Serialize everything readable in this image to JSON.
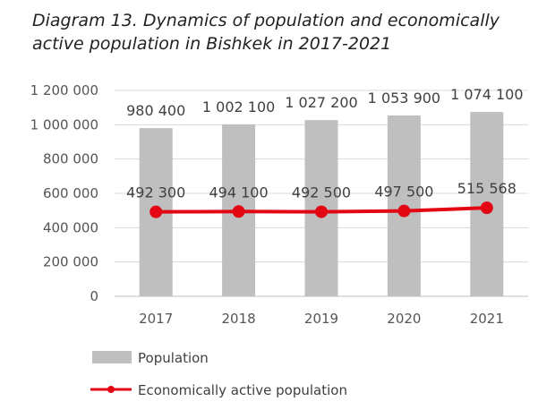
{
  "chart_data": {
    "title": "Diagram 13. Dynamics of population and economically active population in Bishkek in 2017-2021",
    "type": "bar",
    "categories": [
      "2017",
      "2018",
      "2019",
      "2020",
      "2021"
    ],
    "ylim": [
      0,
      1200000
    ],
    "yticks": [
      "0",
      "200 000",
      "400 000",
      "600 000",
      "800 000",
      "1 000 000",
      "1 200 000"
    ],
    "series": [
      {
        "name": "Population",
        "type": "bar",
        "color": "#bfbfbf",
        "values": [
          980400,
          1002100,
          1027200,
          1053900,
          1074100
        ],
        "labels": [
          "980 400",
          "1 002 100",
          "1 027 200",
          "1 053 900",
          "1 074 100"
        ]
      },
      {
        "name": "Economically active population",
        "type": "line",
        "color": "#e30613",
        "values": [
          492300,
          494100,
          492500,
          497500,
          515568
        ],
        "labels": [
          "492 300",
          "494 100",
          "492 500",
          "497 500",
          "515 568"
        ]
      }
    ],
    "grid": true,
    "legend": "bottom-left"
  }
}
